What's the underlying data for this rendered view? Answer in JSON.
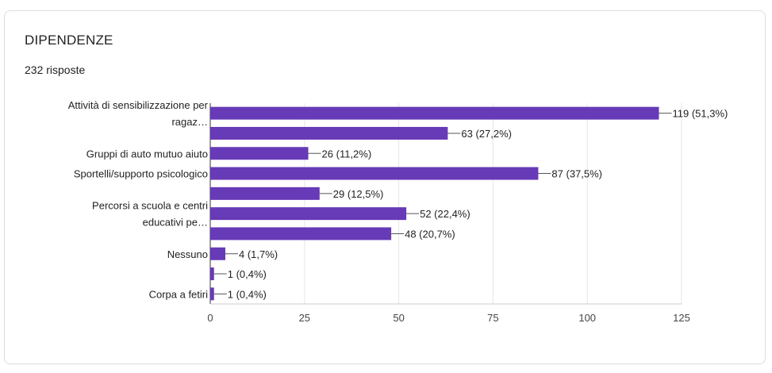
{
  "header": {
    "title": "DIPENDENZE",
    "responses": "232 risposte"
  },
  "colors": {
    "bar": "#673ab7",
    "grid": "#e6e6e6",
    "axis": "#333333",
    "leader": "#7e57c2"
  },
  "chart_data": {
    "type": "bar",
    "orientation": "horizontal",
    "title": "DIPENDENZE",
    "xlabel": "",
    "ylabel": "",
    "xlim": [
      0,
      125
    ],
    "xticks": [
      0,
      25,
      50,
      75,
      100,
      125
    ],
    "grid": true,
    "categories": [
      [
        "Attività di sensibilizzazione per",
        "ragaz…"
      ],
      [],
      [
        "Gruppi di auto mutuo aiuto"
      ],
      [
        "Sportelli/supporto psicologico"
      ],
      [],
      [
        "Percorsi a scuola e centri",
        "educativi pe…"
      ],
      [],
      [
        "Nessuno"
      ],
      [],
      [
        "Corpa a fetiri"
      ]
    ],
    "values": [
      119,
      63,
      26,
      87,
      29,
      52,
      48,
      4,
      1,
      1
    ],
    "value_labels": [
      "119 (51,3%)",
      "63 (27,2%)",
      "26 (11,2%)",
      "87 (37,5%)",
      "29 (12,5%)",
      "52 (22,4%)",
      "48 (20,7%)",
      "4 (1,7%)",
      "1 (0,4%)",
      "1 (0,4%)"
    ]
  }
}
